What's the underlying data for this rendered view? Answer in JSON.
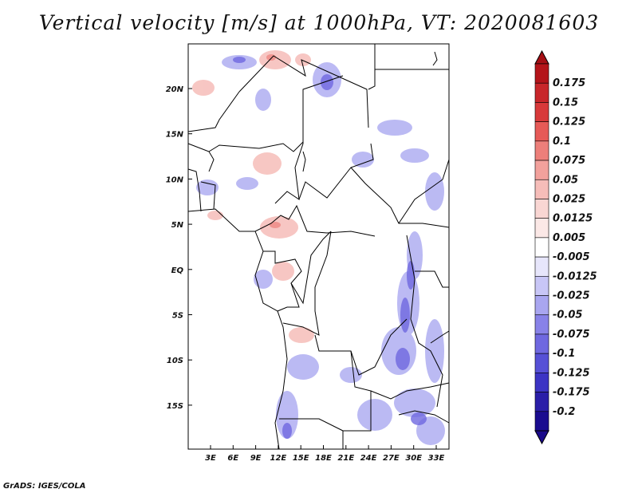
{
  "title": "Vertical velocity [m/s] at 1000hPa, VT: 2020081603",
  "credit": "GrADS: IGES/COLA",
  "axes": {
    "lon_labels": [
      "3E",
      "6E",
      "9E",
      "12E",
      "15E",
      "18E",
      "21E",
      "24E",
      "27E",
      "30E",
      "33E"
    ],
    "lat_labels": [
      "20N",
      "15N",
      "10N",
      "5N",
      "EQ",
      "5S",
      "10S",
      "15S"
    ]
  },
  "colorbar": {
    "levels": [
      "0.175",
      "0.15",
      "0.125",
      "0.1",
      "0.075",
      "0.05",
      "0.025",
      "0.0125",
      "0.005",
      "-0.005",
      "-0.0125",
      "-0.025",
      "-0.05",
      "-0.075",
      "-0.1",
      "-0.125",
      "-0.175",
      "-0.2"
    ],
    "colors": [
      "#b4141a",
      "#c8262a",
      "#d8393a",
      "#e65a57",
      "#ed7f7a",
      "#f2a19c",
      "#f6bdb9",
      "#f9d6d3",
      "#fbe8e6",
      "#ffffff",
      "#e7e6fb",
      "#c8c6f6",
      "#a9a6f0",
      "#8882e8",
      "#6f68e0",
      "#5650d6",
      "#3c34c4",
      "#2a1ea8",
      "#1a0c90"
    ],
    "top_color": "#a50f15",
    "bottom_color": "#1a0a8a"
  }
}
